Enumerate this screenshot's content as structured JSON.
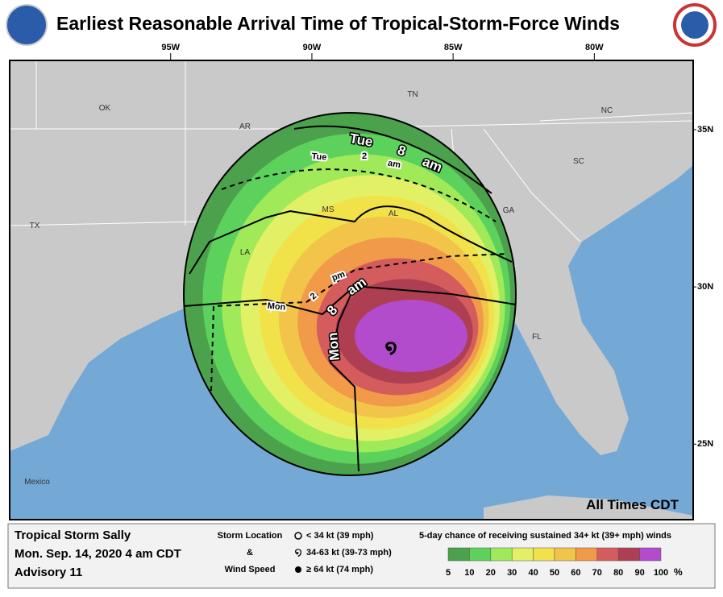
{
  "header": {
    "title": "Earliest Reasonable Arrival Time of Tropical-Storm-Force Winds"
  },
  "map": {
    "lon_range": [
      -100.7,
      -76.5
    ],
    "lat_range": [
      22.6,
      37.2
    ],
    "lon_ticks": [
      {
        "value": -95,
        "label": "95W"
      },
      {
        "value": -90,
        "label": "90W"
      },
      {
        "value": -85,
        "label": "85W"
      },
      {
        "value": -80,
        "label": "80W"
      }
    ],
    "lat_ticks": [
      {
        "value": 35,
        "label": "35N"
      },
      {
        "value": 30,
        "label": "30N"
      },
      {
        "value": 25,
        "label": "25N"
      }
    ],
    "places": [
      "OK",
      "AR",
      "TN",
      "NC",
      "SC",
      "GA",
      "AL",
      "MS",
      "LA",
      "TX",
      "FL",
      "Mexico"
    ],
    "contour_labels": {
      "tue_8am": [
        "Tue",
        "8",
        "am"
      ],
      "tue_2am": [
        "Tue",
        "2",
        "am"
      ],
      "mon_2pm": [
        "Mon",
        "2",
        "pm"
      ],
      "mon_8am": [
        "Mon",
        "8",
        "am"
      ]
    },
    "note": "All Times CDT"
  },
  "footer": {
    "storm": "Tropical Storm Sally",
    "time": "Mon. Sep. 14, 2020  4 am CDT",
    "advisory": "Advisory 11",
    "legend_title": [
      "Storm Location",
      "&",
      "Wind Speed"
    ],
    "legend_items": [
      "< 34 kt (39 mph)",
      "34-63 kt (39-73 mph)",
      "≥ 64 kt (74 mph)"
    ],
    "scale_title": "5-day chance of receiving sustained 34+ kt (39+ mph) winds",
    "probability_scale": {
      "ticks": [
        5,
        10,
        20,
        30,
        40,
        50,
        60,
        70,
        80,
        90,
        100
      ],
      "unit": "%",
      "colors": [
        "#4ca24c",
        "#5cd25c",
        "#a0ea5a",
        "#e2f066",
        "#f2e24a",
        "#f2c44a",
        "#f09a4a",
        "#d45c5c",
        "#ae3e52",
        "#b24ccc"
      ]
    }
  }
}
